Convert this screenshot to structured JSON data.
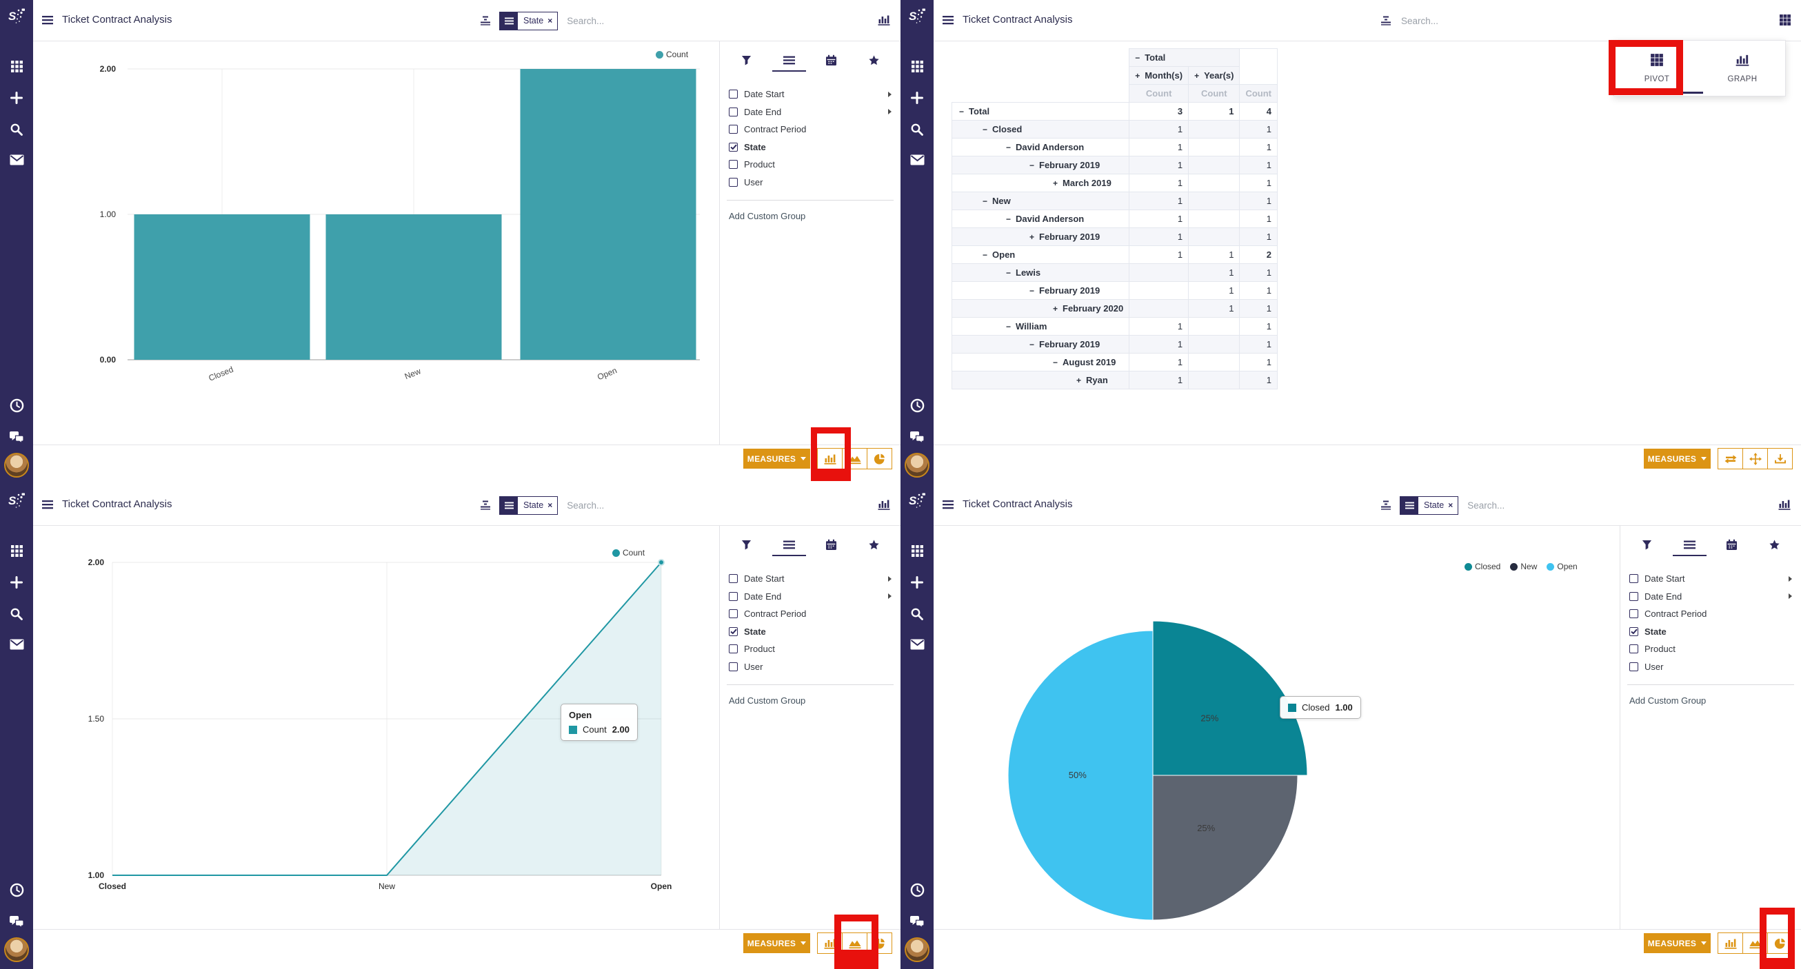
{
  "app": {
    "title": "Ticket Contract Analysis",
    "search_placeholder": "Search...",
    "facet_label": "State",
    "facet_close": "×"
  },
  "filters": {
    "groupby_items": [
      {
        "label": "Date Start",
        "checked": false,
        "expandable": true
      },
      {
        "label": "Date End",
        "checked": false,
        "expandable": true
      },
      {
        "label": "Contract Period",
        "checked": false,
        "expandable": false
      },
      {
        "label": "State",
        "checked": true,
        "expandable": false
      },
      {
        "label": "Product",
        "checked": false,
        "expandable": false
      },
      {
        "label": "User",
        "checked": false,
        "expandable": false
      }
    ],
    "add_custom_group": "Add Custom Group"
  },
  "toolbar": {
    "measures_label": "MEASURES"
  },
  "view_switcher": {
    "pivot_label": "PIVOT",
    "graph_label": "GRAPH"
  },
  "colors": {
    "navy": "#2F2A5C",
    "orange": "#DC9414",
    "red": "#E8110D",
    "bar_teal": "#3FA0AB",
    "line_teal": "#1F97A3",
    "pie_closed": "#0A8594",
    "pie_new": "#5D6470",
    "pie_open": "#3FC3F0"
  },
  "chart_data": [
    {
      "id": "bar",
      "type": "bar",
      "title": "Ticket Contract Analysis",
      "categories": [
        "Closed",
        "New",
        "Open"
      ],
      "series": [
        {
          "name": "Count",
          "values": [
            1,
            1,
            2
          ]
        }
      ],
      "ylim": [
        0,
        2
      ],
      "yticks": [
        {
          "v": 0,
          "label": "0.00",
          "bold": true
        },
        {
          "v": 1,
          "label": "1.00",
          "bold": false
        },
        {
          "v": 2,
          "label": "2.00",
          "bold": true
        }
      ],
      "legend": [
        {
          "label": "Count",
          "color": "#3FA0AB"
        }
      ],
      "legend_position": "top-right",
      "grid": true,
      "bar_color": "#3FA0AB"
    },
    {
      "id": "pivot",
      "type": "table",
      "col_groups": {
        "total": "Total",
        "months": "Month(s)",
        "years": "Year(s)",
        "measure": "Count"
      },
      "signs": {
        "expanded": "−",
        "collapsed": "+"
      },
      "rows": [
        {
          "label": "Total",
          "level": 0,
          "sign": "−",
          "values": [
            "3",
            "1",
            "4"
          ],
          "bold": true
        },
        {
          "label": "Closed",
          "level": 1,
          "sign": "−",
          "values": [
            "1",
            "",
            "1"
          ]
        },
        {
          "label": "David Anderson",
          "level": 2,
          "sign": "−",
          "values": [
            "1",
            "",
            "1"
          ]
        },
        {
          "label": "February 2019",
          "level": 3,
          "sign": "−",
          "values": [
            "1",
            "",
            "1"
          ]
        },
        {
          "label": "March 2019",
          "level": 4,
          "sign": "+",
          "values": [
            "1",
            "",
            "1"
          ]
        },
        {
          "label": "New",
          "level": 1,
          "sign": "−",
          "values": [
            "1",
            "",
            "1"
          ]
        },
        {
          "label": "David Anderson",
          "level": 2,
          "sign": "−",
          "values": [
            "1",
            "",
            "1"
          ]
        },
        {
          "label": "February 2019",
          "level": 3,
          "sign": "+",
          "values": [
            "1",
            "",
            "1"
          ]
        },
        {
          "label": "Open",
          "level": 1,
          "sign": "−",
          "values": [
            "1",
            "1",
            "2"
          ],
          "bold_last": true
        },
        {
          "label": "Lewis",
          "level": 2,
          "sign": "−",
          "values": [
            "",
            "1",
            "1"
          ]
        },
        {
          "label": "February 2019",
          "level": 3,
          "sign": "−",
          "values": [
            "",
            "1",
            "1"
          ]
        },
        {
          "label": "February 2020",
          "level": 4,
          "sign": "+",
          "values": [
            "",
            "1",
            "1"
          ]
        },
        {
          "label": "William",
          "level": 2,
          "sign": "−",
          "values": [
            "1",
            "",
            "1"
          ]
        },
        {
          "label": "February 2019",
          "level": 3,
          "sign": "−",
          "values": [
            "1",
            "",
            "1"
          ]
        },
        {
          "label": "August 2019",
          "level": 4,
          "sign": "−",
          "values": [
            "1",
            "",
            "1"
          ]
        },
        {
          "label": "Ryan",
          "level": 5,
          "sign": "+",
          "values": [
            "1",
            "",
            "1"
          ]
        }
      ]
    },
    {
      "id": "line",
      "type": "area",
      "categories": [
        "Closed",
        "New",
        "Open"
      ],
      "series": [
        {
          "name": "Count",
          "values": [
            1,
            1,
            2
          ]
        }
      ],
      "ylim": [
        1,
        2
      ],
      "yticks": [
        {
          "v": 1,
          "label": "1.00",
          "bold": true
        },
        {
          "v": 1.5,
          "label": "1.50",
          "bold": false
        },
        {
          "v": 2,
          "label": "2.00",
          "bold": true
        }
      ],
      "legend": [
        {
          "label": "Count",
          "color": "#1F97A3"
        }
      ],
      "line_color": "#1F97A3",
      "fill_color": "rgba(31,151,163,0.12)",
      "tooltip": {
        "title": "Open",
        "series": "Count",
        "value": "2.00",
        "color": "#1F97A3"
      }
    },
    {
      "id": "pie",
      "type": "pie",
      "labels": [
        "Closed",
        "New",
        "Open"
      ],
      "values": [
        1,
        1,
        2
      ],
      "percents": [
        "25%",
        "25%",
        "50%"
      ],
      "slice_colors": [
        "#0A8594",
        "#5D6470",
        "#3FC3F0"
      ],
      "legend": [
        {
          "label": "Closed",
          "color": "#0F8A94"
        },
        {
          "label": "New",
          "color": "#262B3F"
        },
        {
          "label": "Open",
          "color": "#3FC3F0"
        }
      ],
      "legend_position": "top-right",
      "tooltip": {
        "label": "Closed",
        "value": "1.00",
        "color": "#0A8594"
      }
    }
  ]
}
